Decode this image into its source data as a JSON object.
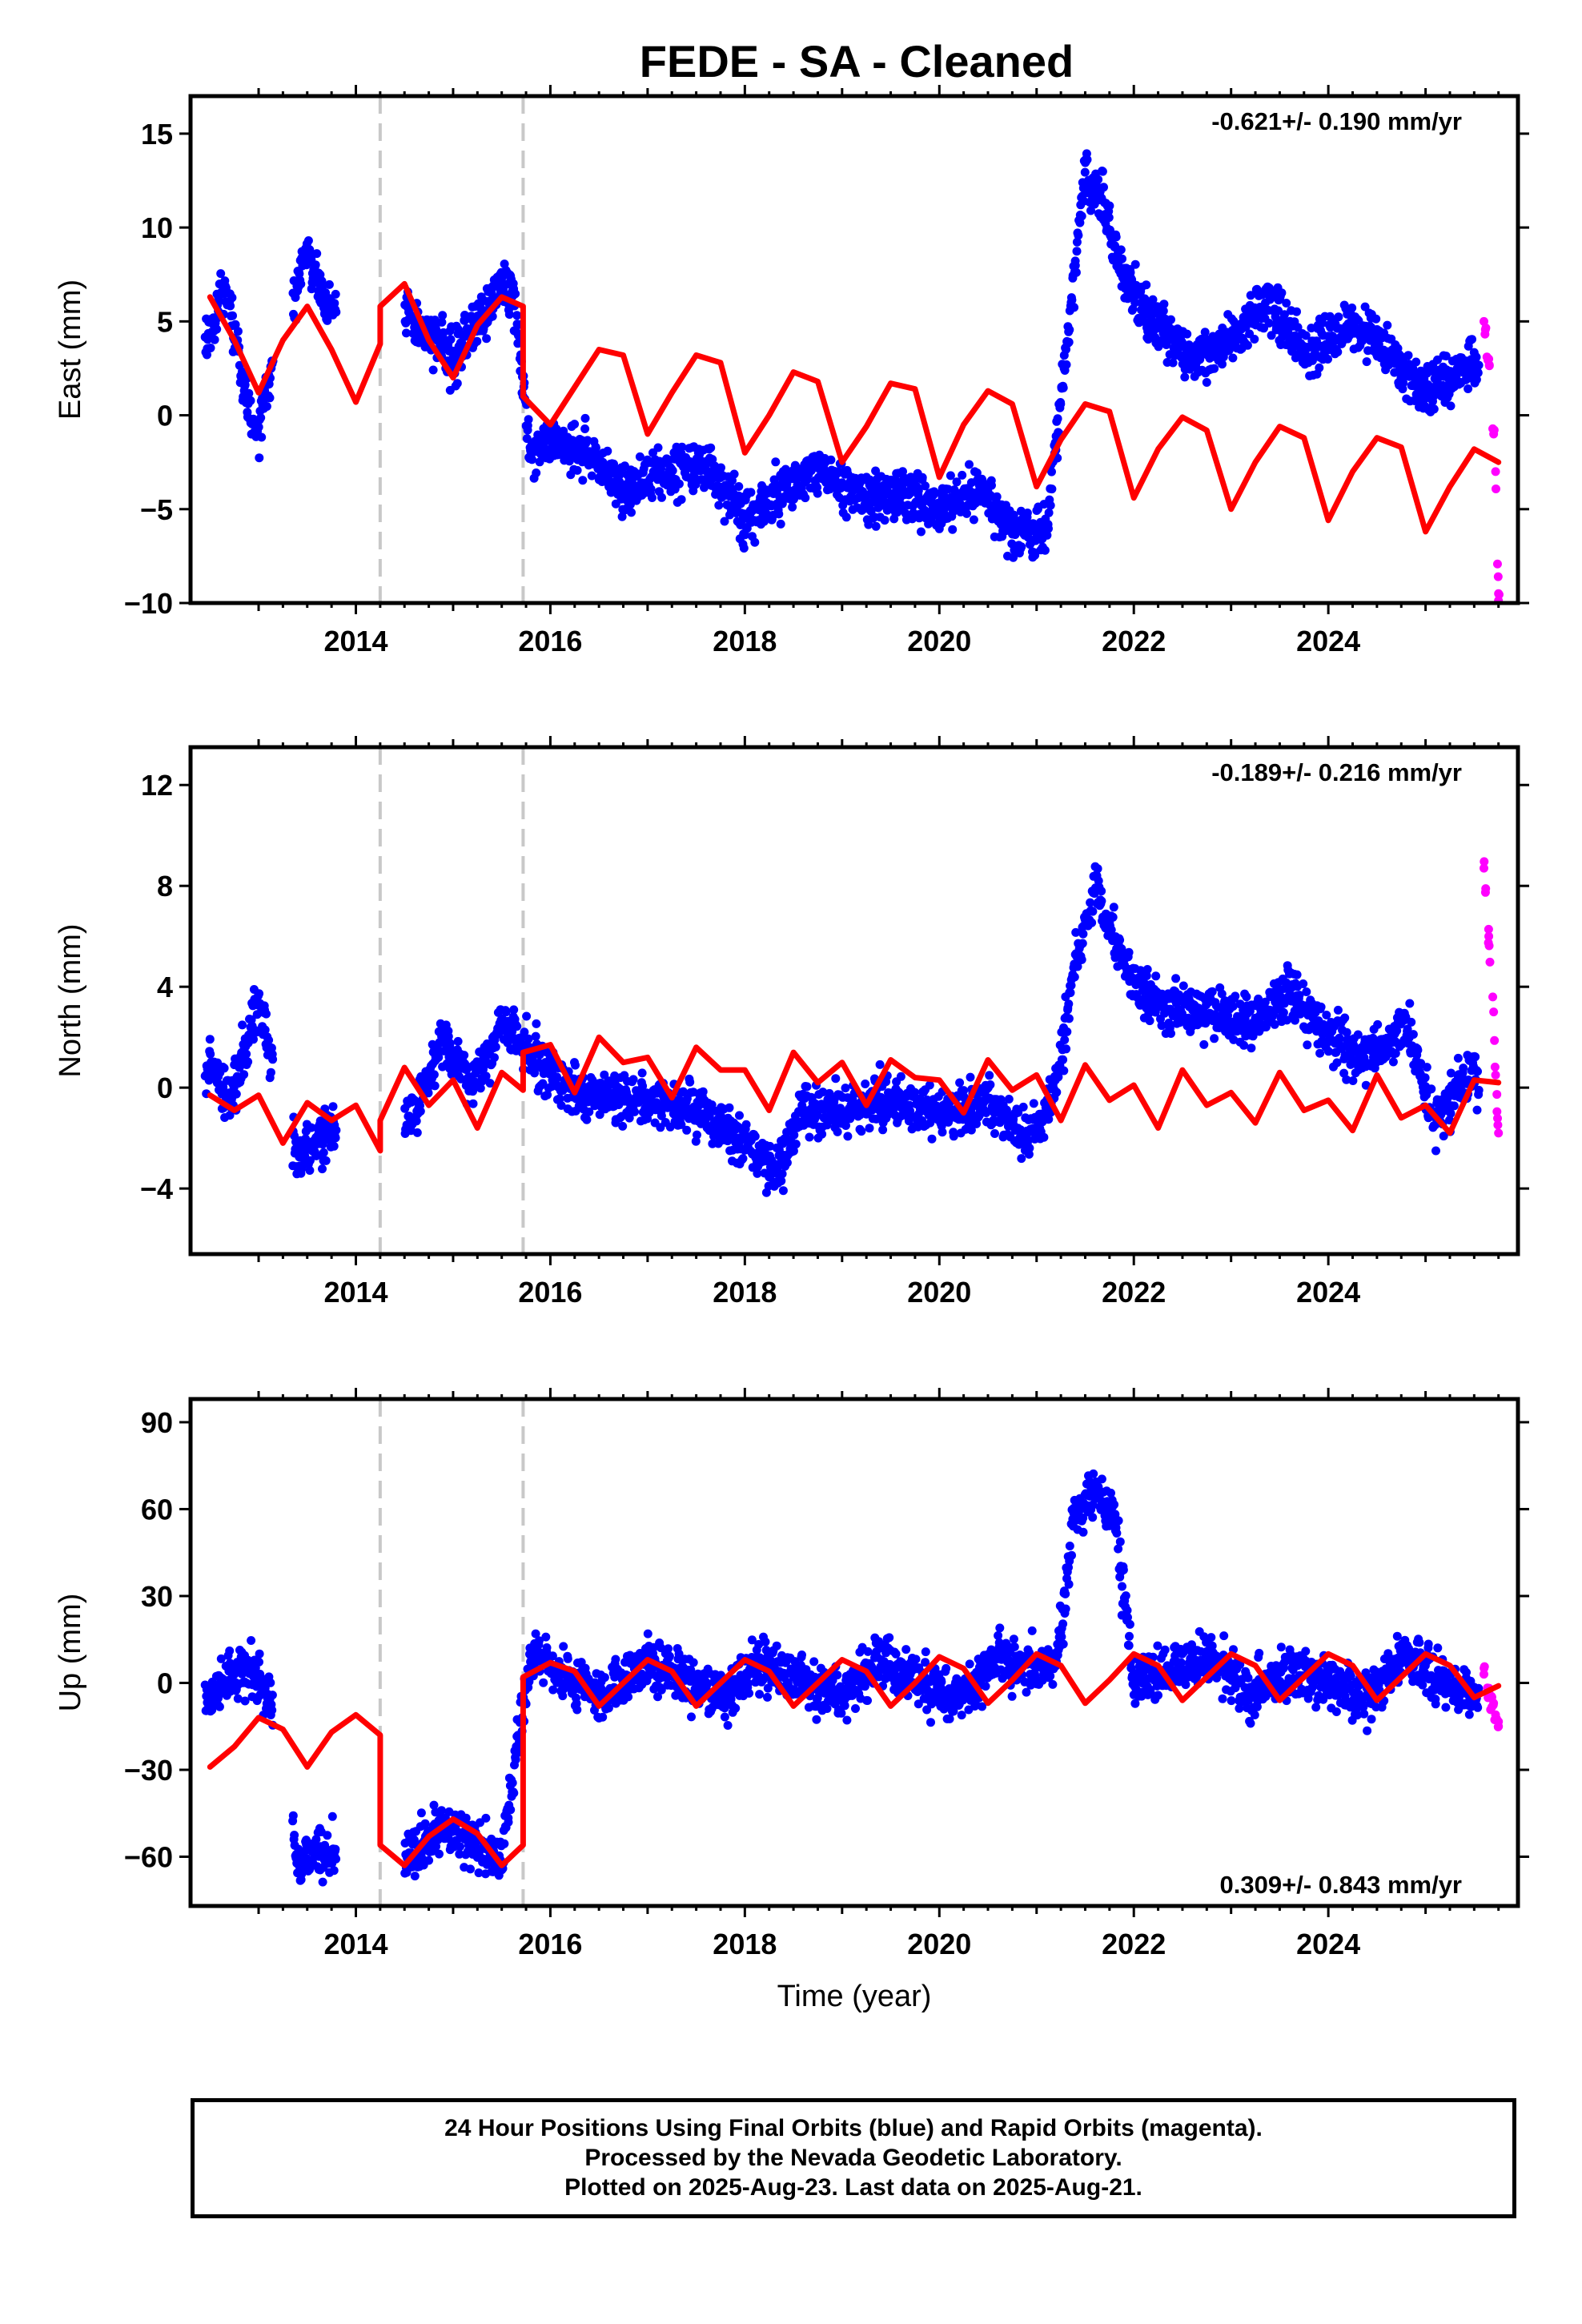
{
  "title": "FEDE  - SA - Cleaned",
  "footer": {
    "line1": "24 Hour Positions Using Final Orbits (blue) and Rapid Orbits (magenta).",
    "line2": "Processed by the Nevada Geodetic Laboratory.",
    "line3": "Plotted on 2025-Aug-23. Last data on 2025-Aug-21."
  },
  "colors": {
    "final_orbits": "#0000ff",
    "rapid_orbits": "#ff00ff",
    "model": "#ff0000",
    "breaks": "#c8c8c8"
  },
  "chart_data": [
    {
      "type": "scatter",
      "component": "East",
      "ylabel": "East (mm)",
      "xlabel": "",
      "xlim": [
        2012.3,
        2025.95
      ],
      "ylim": [
        -10,
        17
      ],
      "xticks": [
        2014,
        2016,
        2018,
        2020,
        2022,
        2024
      ],
      "yticks": [
        -10,
        -5,
        0,
        5,
        10,
        15
      ],
      "rate": "-0.621+/- 0.190 mm/yr",
      "rate_position": "top-right",
      "grid": false,
      "breaks": [
        2014.25,
        2015.72
      ],
      "data_segments": [
        [
          2012.45,
          2013.15
        ],
        [
          2013.35,
          2013.8
        ],
        [
          2014.5,
          2021.3
        ],
        [
          2021.3,
          2025.55
        ]
      ],
      "series": [
        {
          "name": "Final Orbits",
          "x": [
            2012.5,
            2012.6,
            2012.7,
            2012.8,
            2012.9,
            2013.0,
            2013.1,
            2013.4,
            2013.5,
            2013.6,
            2013.7,
            2014.6,
            2014.8,
            2015.0,
            2015.2,
            2015.4,
            2015.6,
            2015.8,
            2016.0,
            2016.4,
            2016.8,
            2017.2,
            2017.6,
            2018.0,
            2018.4,
            2018.8,
            2019.2,
            2019.6,
            2020.0,
            2020.4,
            2020.8,
            2021.1,
            2021.3,
            2021.5,
            2021.7,
            2021.9,
            2022.2,
            2022.6,
            2023.0,
            2023.4,
            2023.8,
            2024.2,
            2024.6,
            2025.0,
            2025.4
          ],
          "y": [
            4,
            6.5,
            6,
            3,
            0,
            -1,
            2,
            7,
            8.5,
            7.5,
            6,
            5,
            4,
            3,
            4.5,
            6,
            7,
            -2,
            -1.5,
            -2,
            -4,
            -3,
            -2.5,
            -5.5,
            -4,
            -3,
            -4.5,
            -4,
            -5,
            -4,
            -6.5,
            -6,
            3,
            13,
            11,
            7,
            5,
            3,
            4,
            6,
            3,
            5,
            3.5,
            1,
            2.5
          ]
        },
        {
          "name": "Rapid Orbits",
          "x": [
            2025.6,
            2025.65,
            2025.7,
            2025.72,
            2025.75
          ],
          "y": [
            5,
            3,
            -1,
            -3,
            -9.5
          ]
        },
        {
          "name": "Model",
          "x": [
            2012.5,
            2012.75,
            2013.0,
            2013.25,
            2013.5,
            2013.75,
            2014.0,
            2014.25,
            2014.25,
            2014.5,
            2014.75,
            2015.0,
            2015.25,
            2015.5,
            2015.72,
            2015.72,
            2016.0,
            2016.25,
            2016.5,
            2016.75,
            2017.0,
            2017.25,
            2017.5,
            2017.75,
            2018.0,
            2018.25,
            2018.5,
            2018.75,
            2019.0,
            2019.25,
            2019.5,
            2019.75,
            2020.0,
            2020.25,
            2020.5,
            2020.75,
            2021.0,
            2021.25,
            2021.5,
            2021.75,
            2022.0,
            2022.25,
            2022.5,
            2022.75,
            2023.0,
            2023.25,
            2023.5,
            2023.75,
            2024.0,
            2024.25,
            2024.5,
            2024.75,
            2025.0,
            2025.25,
            2025.5,
            2025.75
          ],
          "y": [
            6.3,
            4,
            1.2,
            4,
            5.8,
            3.5,
            0.7,
            3.8,
            5.8,
            7,
            4,
            2,
            4.8,
            6.3,
            5.8,
            1,
            -0.5,
            1.5,
            3.5,
            3.2,
            -1,
            1.2,
            3.2,
            2.8,
            -2,
            0,
            2.3,
            1.8,
            -2.5,
            -0.6,
            1.7,
            1.4,
            -3.3,
            -0.5,
            1.3,
            0.6,
            -3.8,
            -1.3,
            0.6,
            0.2,
            -4.4,
            -1.8,
            -0.1,
            -0.8,
            -5,
            -2.5,
            -0.6,
            -1.2,
            -5.6,
            -3,
            -1.2,
            -1.7,
            -6.2,
            -3.8,
            -1.8,
            -2.5
          ]
        }
      ]
    },
    {
      "type": "scatter",
      "component": "North",
      "ylabel": "North (mm)",
      "xlabel": "",
      "xlim": [
        2012.3,
        2025.95
      ],
      "ylim": [
        -6.6,
        13.5
      ],
      "xticks": [
        2014,
        2016,
        2018,
        2020,
        2022,
        2024
      ],
      "yticks": [
        -4,
        0,
        4,
        8,
        12
      ],
      "rate": "-0.189+/- 0.216 mm/yr",
      "rate_position": "top-right",
      "grid": false,
      "breaks": [
        2014.25,
        2015.72
      ],
      "data_segments": [
        [
          2012.45,
          2013.15
        ],
        [
          2013.35,
          2013.8
        ],
        [
          2014.5,
          2021.3
        ],
        [
          2021.3,
          2025.55
        ]
      ],
      "series": [
        {
          "name": "Final Orbits",
          "x": [
            2012.5,
            2012.7,
            2012.9,
            2013.0,
            2013.4,
            2013.6,
            2014.6,
            2014.9,
            2015.2,
            2015.5,
            2016.0,
            2016.5,
            2017.0,
            2017.5,
            2018.0,
            2018.3,
            2018.6,
            2019.0,
            2019.5,
            2020.0,
            2020.5,
            2020.9,
            2021.2,
            2021.4,
            2021.6,
            2021.8,
            2022.0,
            2022.4,
            2022.8,
            2023.2,
            2023.6,
            2024.0,
            2024.4,
            2024.8,
            2025.1,
            2025.4
          ],
          "y": [
            1,
            -0.5,
            2,
            3.5,
            -3,
            -2,
            -1,
            2,
            0,
            2.5,
            0.5,
            -0.5,
            -0.5,
            -1,
            -2,
            -3.5,
            -1,
            -1,
            -0.5,
            -1,
            -0.5,
            -2,
            0,
            5,
            8,
            6,
            4,
            3,
            3,
            2.5,
            4,
            2,
            1,
            2.5,
            -1.5,
            0.5
          ]
        },
        {
          "name": "Rapid Orbits",
          "x": [
            2025.6,
            2025.65,
            2025.7,
            2025.72,
            2025.75
          ],
          "y": [
            8.7,
            6,
            3,
            0.5,
            -1.8
          ]
        },
        {
          "name": "Model",
          "x": [
            2012.5,
            2012.75,
            2013.0,
            2013.25,
            2013.5,
            2013.75,
            2014.0,
            2014.25,
            2014.25,
            2014.5,
            2014.75,
            2015.0,
            2015.25,
            2015.5,
            2015.72,
            2015.72,
            2016.0,
            2016.25,
            2016.5,
            2016.75,
            2017.0,
            2017.25,
            2017.5,
            2017.75,
            2018.0,
            2018.25,
            2018.5,
            2018.75,
            2019.0,
            2019.25,
            2019.5,
            2019.75,
            2020.0,
            2020.25,
            2020.5,
            2020.75,
            2021.0,
            2021.25,
            2021.5,
            2021.75,
            2022.0,
            2022.25,
            2022.5,
            2022.75,
            2023.0,
            2023.25,
            2023.5,
            2023.75,
            2024.0,
            2024.25,
            2024.5,
            2024.75,
            2025.0,
            2025.25,
            2025.5,
            2025.75
          ],
          "y": [
            -0.3,
            -0.9,
            -0.3,
            -2.2,
            -0.6,
            -1.3,
            -0.7,
            -2.5,
            -1.3,
            0.8,
            -0.7,
            0.3,
            -1.6,
            0.6,
            -0.1,
            1.4,
            1.7,
            -0.2,
            2,
            1,
            1.2,
            -0.4,
            1.6,
            0.7,
            0.7,
            -0.9,
            1.4,
            0.2,
            1,
            -0.7,
            1.1,
            0.4,
            0.3,
            -1,
            1.1,
            -0.1,
            0.5,
            -1.3,
            0.9,
            -0.5,
            0.1,
            -1.6,
            0.7,
            -0.7,
            -0.2,
            -1.4,
            0.6,
            -0.9,
            -0.5,
            -1.7,
            0.5,
            -1.2,
            -0.7,
            -1.8,
            0.3,
            0.2
          ]
        }
      ]
    },
    {
      "type": "scatter",
      "component": "Up",
      "ylabel": "Up (mm)",
      "xlabel": "Time (year)",
      "xlim": [
        2012.3,
        2025.95
      ],
      "ylim": [
        -77,
        98
      ],
      "xticks": [
        2014,
        2016,
        2018,
        2020,
        2022,
        2024
      ],
      "yticks": [
        -60,
        -30,
        0,
        30,
        60,
        90
      ],
      "rate": "0.309+/- 0.843 mm/yr",
      "rate_position": "bottom-right",
      "grid": false,
      "breaks": [
        2014.25,
        2015.72
      ],
      "data_segments": [
        [
          2012.45,
          2013.15
        ],
        [
          2013.35,
          2013.8
        ],
        [
          2014.5,
          2021.3
        ],
        [
          2021.3,
          2025.55
        ]
      ],
      "series": [
        {
          "name": "Final Orbits",
          "x": [
            2012.5,
            2012.7,
            2012.9,
            2013.1,
            2013.4,
            2013.6,
            2014.6,
            2014.9,
            2015.2,
            2015.5,
            2015.8,
            2016.2,
            2016.6,
            2017.0,
            2017.4,
            2017.8,
            2018.2,
            2018.6,
            2019.0,
            2019.4,
            2019.8,
            2020.2,
            2020.6,
            2021.0,
            2021.2,
            2021.4,
            2021.6,
            2021.8,
            2022.0,
            2022.4,
            2022.8,
            2023.2,
            2023.6,
            2024.0,
            2024.4,
            2024.8,
            2025.2,
            2025.5
          ],
          "y": [
            -5,
            0,
            5,
            -5,
            -62,
            -58,
            -58,
            -50,
            -55,
            -58,
            10,
            0,
            -5,
            8,
            0,
            -5,
            8,
            0,
            -5,
            8,
            0,
            -5,
            8,
            5,
            5,
            58,
            65,
            60,
            0,
            5,
            10,
            -5,
            5,
            0,
            -5,
            10,
            0,
            -5
          ]
        },
        {
          "name": "Rapid Orbits",
          "x": [
            2025.6,
            2025.65,
            2025.7,
            2025.72,
            2025.75
          ],
          "y": [
            3,
            -3,
            -7,
            -11,
            -15
          ]
        },
        {
          "name": "Model",
          "x": [
            2012.5,
            2012.75,
            2013.0,
            2013.25,
            2013.5,
            2013.75,
            2014.0,
            2014.25,
            2014.25,
            2014.5,
            2014.75,
            2015.0,
            2015.25,
            2015.5,
            2015.72,
            2015.72,
            2016.0,
            2016.25,
            2016.5,
            2016.75,
            2017.0,
            2017.25,
            2017.5,
            2017.75,
            2018.0,
            2018.25,
            2018.5,
            2018.75,
            2019.0,
            2019.25,
            2019.5,
            2019.75,
            2020.0,
            2020.25,
            2020.5,
            2020.75,
            2021.0,
            2021.25,
            2021.5,
            2021.75,
            2022.0,
            2022.25,
            2022.5,
            2022.75,
            2023.0,
            2023.25,
            2023.5,
            2023.75,
            2024.0,
            2024.25,
            2024.5,
            2024.75,
            2025.0,
            2025.25,
            2025.5,
            2025.75
          ],
          "y": [
            -29,
            -22,
            -12,
            -16,
            -29,
            -17,
            -11,
            -18,
            -56,
            -63,
            -53,
            -47,
            -52,
            -63,
            -56,
            2,
            7,
            4,
            -8,
            0,
            8,
            4,
            -8,
            0,
            8,
            4,
            -8,
            0,
            8,
            4,
            -8,
            0,
            9,
            5,
            -7,
            1,
            10,
            6,
            -7,
            1,
            10,
            6,
            -6,
            2,
            10,
            6,
            -6,
            2,
            10,
            6,
            -6,
            2,
            10,
            6,
            -5,
            -1
          ]
        }
      ]
    }
  ]
}
